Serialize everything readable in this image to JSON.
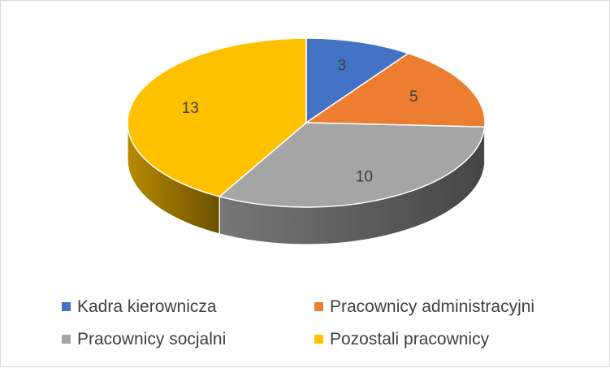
{
  "chart_data": {
    "type": "pie",
    "title": "",
    "categories": [
      "Kadra kierownicza",
      "Pracownicy administracyjni",
      "Pracownicy socjalni",
      "Pozostali pracownicy"
    ],
    "values": [
      3,
      5,
      10,
      13
    ],
    "colors": [
      "#4472c4",
      "#ed7d31",
      "#a5a5a5",
      "#ffc000"
    ],
    "data_labels": [
      "3",
      "5",
      "10",
      "13"
    ],
    "style": "3d-tilted",
    "legend_position": "bottom"
  }
}
